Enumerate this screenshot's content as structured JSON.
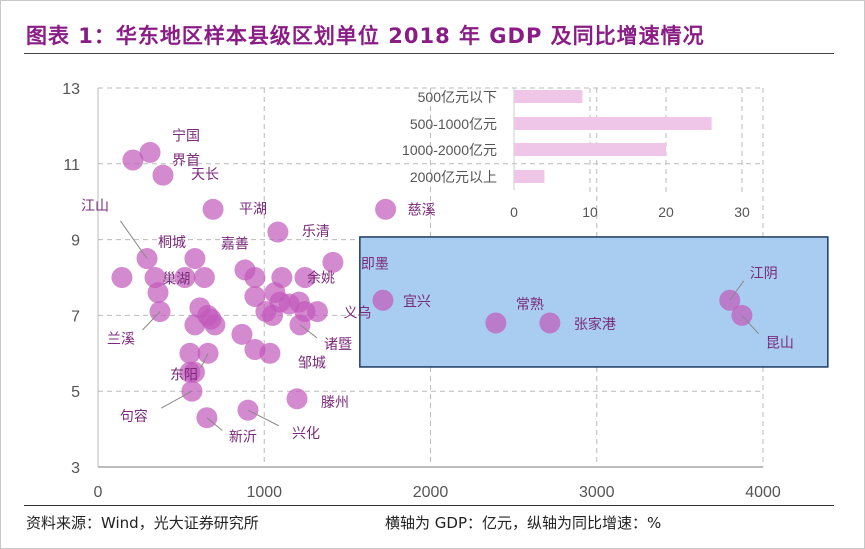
{
  "title": "图表 1：华东地区样本县级区划单位 2018 年 GDP 及同比增速情况",
  "source": "资料来源：Wind，光大证券研究所",
  "note": "横轴为 GDP：亿元，纵轴为同比增速：%",
  "colors": {
    "title": "#8a1c86",
    "point": "#c259bb",
    "label": "#7a2a7a",
    "highlight_box": "#a9cdf0",
    "inset_bar": "#efc6e8"
  },
  "chart_data": [
    {
      "type": "scatter",
      "xlim": [
        0,
        4000
      ],
      "ylim": [
        3,
        13
      ],
      "xticks": [
        0,
        1000,
        2000,
        3000,
        4000
      ],
      "yticks": [
        3,
        5,
        7,
        9,
        11,
        13
      ],
      "grid": true,
      "highlight_box": {
        "x": [
          1575,
          4390
        ],
        "y": [
          5.64,
          9.07
        ]
      },
      "points": [
        {
          "x": 210,
          "y": 11.1
        },
        {
          "x": 313,
          "y": 11.3,
          "label": "宁国"
        },
        {
          "x": 391,
          "y": 10.7,
          "label": "天长"
        },
        {
          "x": 692,
          "y": 9.8,
          "label": "平湖"
        },
        {
          "x": 1082,
          "y": 9.2,
          "label": "乐清"
        },
        {
          "x": 1730,
          "y": 9.8,
          "label": "慈溪"
        },
        {
          "x": 295,
          "y": 8.5,
          "label": "江山"
        },
        {
          "x": 583,
          "y": 8.5,
          "label": "嘉善"
        },
        {
          "x": 1413,
          "y": 8.4,
          "label": "即墨"
        },
        {
          "x": 144,
          "y": 8.0
        },
        {
          "x": 343,
          "y": 8.0
        },
        {
          "x": 523,
          "y": 8.0
        },
        {
          "x": 640,
          "y": 8.0,
          "label": "巢湖"
        },
        {
          "x": 884,
          "y": 8.2
        },
        {
          "x": 944,
          "y": 8.0
        },
        {
          "x": 1106,
          "y": 8.0
        },
        {
          "x": 1245,
          "y": 8.0,
          "label": "余姚"
        },
        {
          "x": 361,
          "y": 7.6
        },
        {
          "x": 373,
          "y": 7.1,
          "label": "兰溪"
        },
        {
          "x": 613,
          "y": 7.2
        },
        {
          "x": 660,
          "y": 7.0
        },
        {
          "x": 680,
          "y": 6.9
        },
        {
          "x": 583,
          "y": 6.75
        },
        {
          "x": 703,
          "y": 6.75
        },
        {
          "x": 944,
          "y": 7.5
        },
        {
          "x": 1064,
          "y": 7.6
        },
        {
          "x": 1094,
          "y": 7.35
        },
        {
          "x": 1010,
          "y": 7.1
        },
        {
          "x": 1150,
          "y": 7.3
        },
        {
          "x": 1050,
          "y": 7.0
        },
        {
          "x": 1210,
          "y": 7.35
        },
        {
          "x": 1245,
          "y": 7.1
        },
        {
          "x": 1320,
          "y": 7.1,
          "label": "义乌"
        },
        {
          "x": 1215,
          "y": 6.75,
          "label": "诸暨"
        },
        {
          "x": 866,
          "y": 6.5
        },
        {
          "x": 944,
          "y": 6.1
        },
        {
          "x": 1034,
          "y": 6.0,
          "label": "邹城"
        },
        {
          "x": 553,
          "y": 6.0
        },
        {
          "x": 662,
          "y": 6.0,
          "label": "东阳"
        },
        {
          "x": 553,
          "y": 5.5
        },
        {
          "x": 580,
          "y": 5.5
        },
        {
          "x": 565,
          "y": 5.0,
          "label": "句容"
        },
        {
          "x": 655,
          "y": 4.3,
          "label": "新沂"
        },
        {
          "x": 902,
          "y": 4.5,
          "label": "兴化"
        },
        {
          "x": 1197,
          "y": 4.8,
          "label": "滕州"
        },
        {
          "x": 1714,
          "y": 7.4,
          "label": "宜兴"
        },
        {
          "x": 2393,
          "y": 6.8,
          "label": "常熟"
        },
        {
          "x": 2718,
          "y": 6.8,
          "label": "张家港"
        },
        {
          "x": 3800,
          "y": 7.4,
          "label": "江阴"
        },
        {
          "x": 3873,
          "y": 7.0,
          "label": "昆山"
        }
      ],
      "extra_labels": [
        "界首",
        "桐城"
      ]
    },
    {
      "type": "bar",
      "orientation": "horizontal",
      "categories": [
        "500亿元以下",
        "500-1000亿元",
        "1000-2000亿元",
        "2000亿元以上"
      ],
      "values": [
        9,
        26,
        20,
        4
      ],
      "xlim": [
        0,
        30
      ],
      "xticks": [
        0,
        10,
        20,
        30
      ]
    }
  ]
}
